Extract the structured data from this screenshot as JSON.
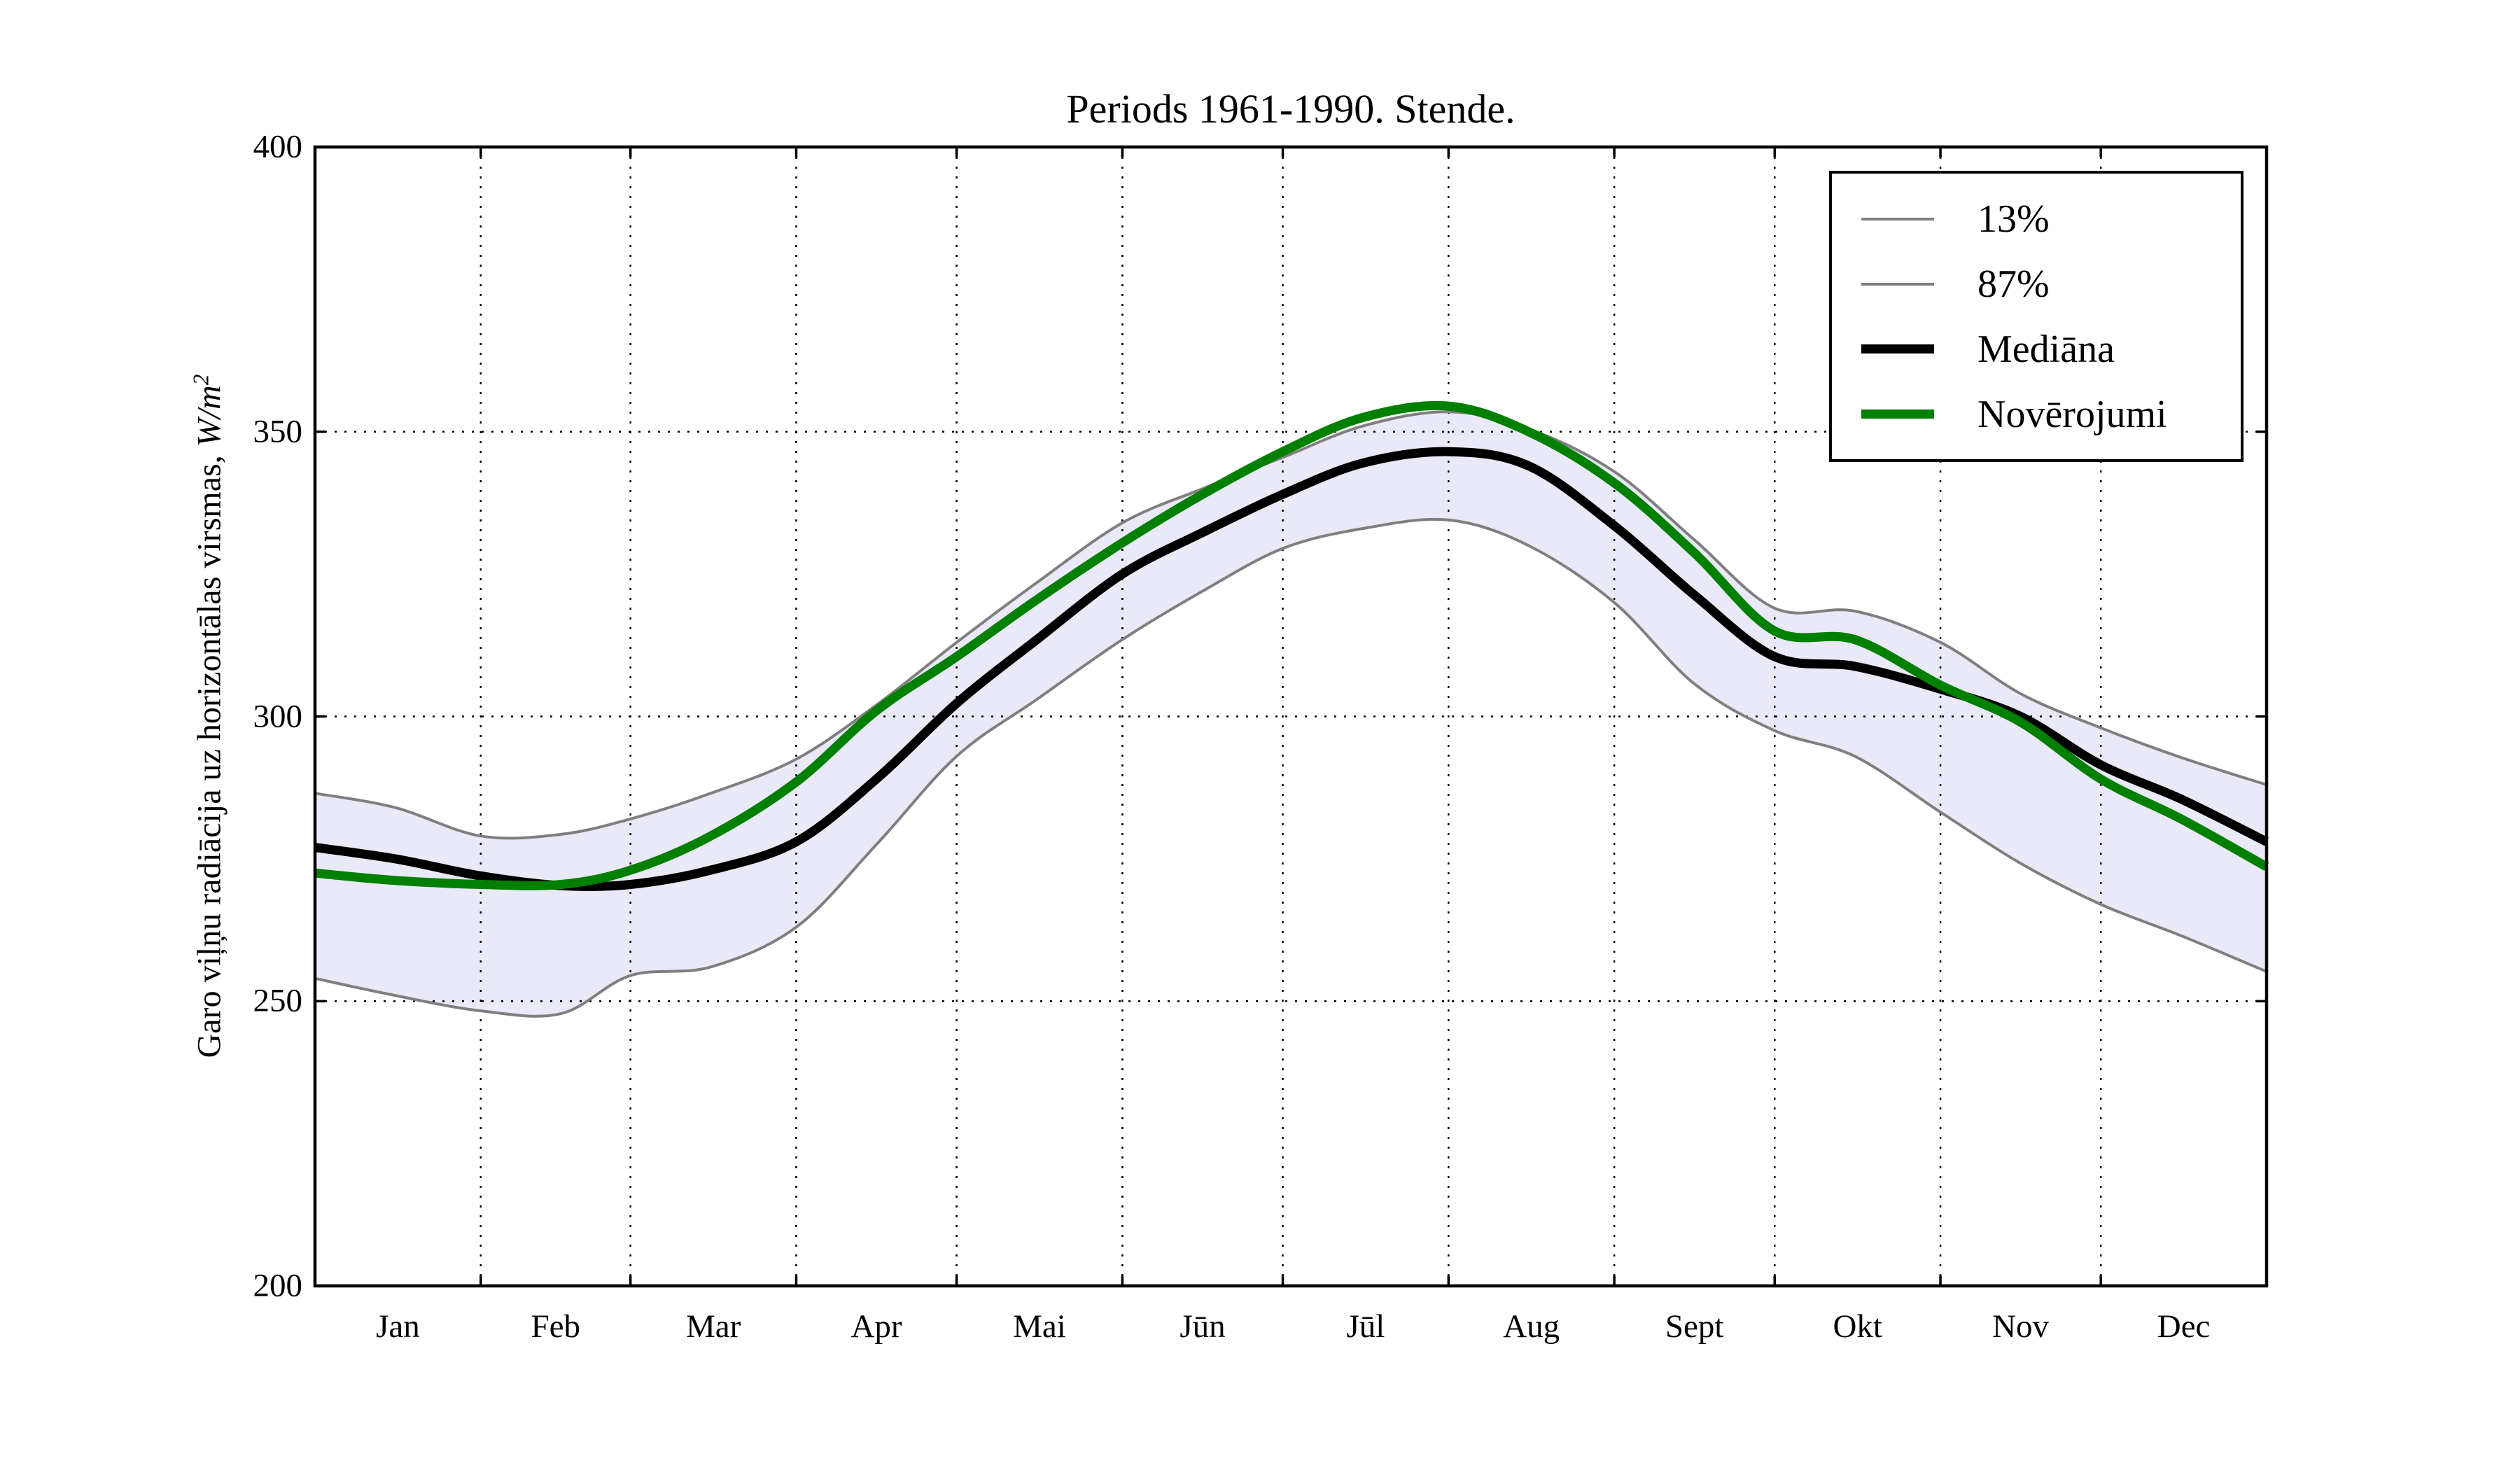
{
  "figure": {
    "title": "Periods 1961-1990. Stende.",
    "background_color": "#ffffff",
    "ylabel": {
      "text": "Garo viļņu radiācija uz horizontālas virsmas, ",
      "math": "W/m",
      "exp": "2"
    }
  },
  "legend": {
    "items": [
      {
        "label": "13%",
        "color": "#7f7f7f",
        "line_thickness": 4
      },
      {
        "label": "87%",
        "color": "#7f7f7f",
        "line_thickness": 4
      },
      {
        "label": "Mediāna",
        "color": "#000000",
        "line_thickness": 13
      },
      {
        "label": "Novērojumi",
        "color": "#008000",
        "line_thickness": 13
      }
    ]
  },
  "chart_data": {
    "type": "line",
    "title": "Periods 1961-1990. Stende.",
    "ylabel": "Garo viļņu radiācija uz horizontālas virsmas, W/m2",
    "xlabel": "",
    "ylim": [
      200,
      400
    ],
    "xlim_days": [
      0,
      365
    ],
    "y_ticks": [
      200,
      250,
      300,
      350,
      400
    ],
    "x_tick_labels": [
      "Jan",
      "Feb",
      "Mar",
      "Apr",
      "Mai",
      "Jūn",
      "Jūl",
      "Aug",
      "Sept",
      "Okt",
      "Nov",
      "Dec"
    ],
    "month_boundary_days": [
      0,
      31,
      59,
      90,
      120,
      151,
      181,
      212,
      243,
      273,
      304,
      334,
      365
    ],
    "grid": {
      "shown": true,
      "style": "dotted",
      "y_values": [
        250,
        300,
        350
      ],
      "x_days": [
        31,
        59,
        90,
        120,
        151,
        181,
        212,
        243,
        273,
        304,
        334
      ]
    },
    "band_fill_color": "#e9e9f7",
    "x_days": [
      0,
      15,
      31,
      46,
      59,
      74,
      90,
      105,
      120,
      135,
      151,
      166,
      181,
      196,
      212,
      227,
      243,
      258,
      273,
      288,
      304,
      319,
      334,
      349,
      365
    ],
    "series": [
      {
        "name": "13%",
        "color": "#7f7f7f",
        "width": 4,
        "role": "band-lower",
        "values": [
          254,
          251,
          248.3,
          247.8,
          254.5,
          256,
          263,
          277.5,
          293,
          303,
          313.5,
          322,
          329.5,
          333,
          334.5,
          330,
          320,
          305.7,
          297.5,
          293,
          283.2,
          274.2,
          267,
          261.5,
          255.2
        ]
      },
      {
        "name": "87%",
        "color": "#7f7f7f",
        "width": 4,
        "role": "band-upper",
        "values": [
          286.5,
          284,
          279,
          279.3,
          282,
          286.5,
          292.5,
          302,
          313,
          323.5,
          334,
          340,
          345.5,
          351,
          353.5,
          350.5,
          343,
          331,
          319,
          318.5,
          313,
          304,
          298,
          292.8,
          288
        ]
      },
      {
        "name": "Mediāna",
        "color": "#000000",
        "width": 13,
        "role": "median",
        "values": [
          277,
          275,
          272,
          270.3,
          270.5,
          273,
          278,
          289,
          302.3,
          313.5,
          325,
          332.3,
          339,
          344.5,
          346.5,
          344,
          333.5,
          321.3,
          310.5,
          308.8,
          304.8,
          300,
          291.5,
          285.5,
          278
        ]
      },
      {
        "name": "Novērojumi",
        "color": "#008000",
        "width": 13,
        "role": "observations",
        "values": [
          272.5,
          271.2,
          270.5,
          270.5,
          273,
          279,
          288.5,
          301,
          310.5,
          320.5,
          330.5,
          339,
          346.5,
          352.5,
          354.5,
          350,
          341,
          328.7,
          315,
          313.5,
          305.5,
          299,
          289,
          282,
          273.6
        ]
      }
    ],
    "legend_position": "upper right"
  }
}
